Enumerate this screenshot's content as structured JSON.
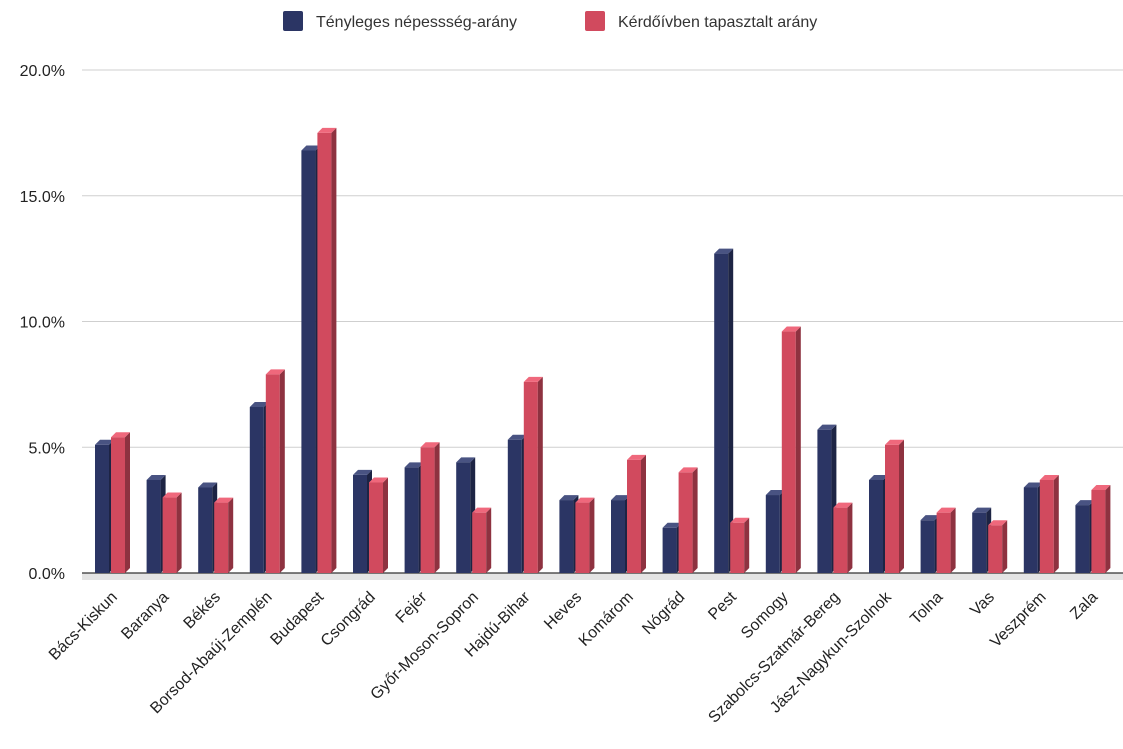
{
  "chart_data": {
    "type": "bar",
    "title": "",
    "xlabel": "",
    "ylabel": "",
    "ylim": [
      0,
      20
    ],
    "y_ticks": [
      "0.0%",
      "5.0%",
      "10.0%",
      "15.0%",
      "20.0%"
    ],
    "grid": "horizontal",
    "legend_position": "top",
    "categories": [
      "Bács-Kiskun",
      "Baranya",
      "Békés",
      "Borsod-Abaúj-Zemplén",
      "Budapest",
      "Csongrád",
      "Fejér",
      "Győr-Moson-Sopron",
      "Hajdú-Bihar",
      "Heves",
      "Komárom",
      "Nógrád",
      "Pest",
      "Somogy",
      "Szabolcs-Szatmár-Bereg",
      "Jász-Nagykun-Szolnok",
      "Tolna",
      "Vas",
      "Veszprém",
      "Zala"
    ],
    "series": [
      {
        "name": "Tényleges népessség-arány",
        "color": "#2b3564",
        "values": [
          5.1,
          3.7,
          3.4,
          6.6,
          16.8,
          3.9,
          4.2,
          4.4,
          5.3,
          2.9,
          2.9,
          1.8,
          12.7,
          3.1,
          5.7,
          3.7,
          2.1,
          2.4,
          3.4,
          2.7
        ]
      },
      {
        "name": "Kérdőívben tapasztalt arány",
        "color": "#d14a5e",
        "values": [
          5.4,
          3.0,
          2.8,
          7.9,
          17.5,
          3.6,
          5.0,
          2.4,
          7.6,
          2.8,
          4.5,
          4.0,
          2.0,
          9.6,
          2.6,
          5.1,
          2.4,
          1.9,
          3.7,
          3.3
        ]
      }
    ]
  }
}
